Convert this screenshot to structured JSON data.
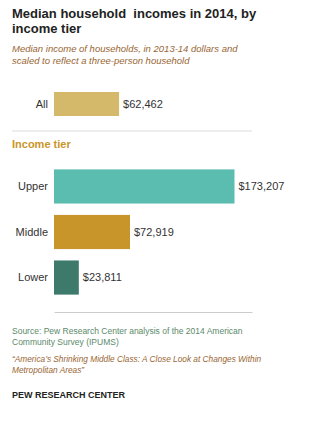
{
  "chart_data": {
    "type": "bar",
    "orientation": "horizontal",
    "title": "Median household  incomes in 2014, by\nincome tier",
    "subtitle": "Median income of households, in 2013-14 dollars and\nscaled to reflect a three-person household",
    "categories": [
      "All",
      "Upper",
      "Middle",
      "Lower"
    ],
    "values": [
      62462,
      173207,
      72919,
      23811
    ],
    "value_labels": [
      "$62,462",
      "$173,207",
      "$72,919",
      "$23,811"
    ],
    "colors": [
      "#d4b96a",
      "#5bbcb0",
      "#c8952a",
      "#3d7a6b"
    ],
    "xlim": [
      0,
      190000
    ],
    "tick_labels": false,
    "grid": false,
    "data_labels": true,
    "annotations": [
      {
        "text": "Income tier"
      },
      {
        "text": "Source: Pew Research Center analysis of the 2014 American\nCommunity Survey (IPUMS)"
      },
      {
        "text": "“America’s Shrinking Middle Class: A Close Look at Changes Within\nMetropolitan Areas”"
      },
      {
        "text": "PEW RESEARCH CENTER"
      }
    ]
  }
}
